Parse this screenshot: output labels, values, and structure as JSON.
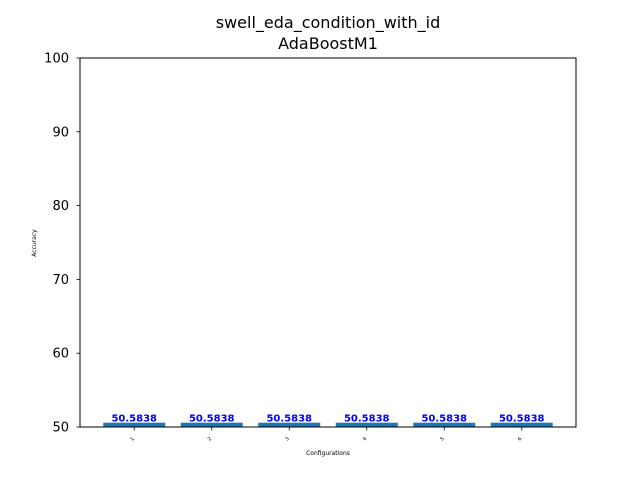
{
  "chart_data": {
    "type": "bar",
    "title": "swell_eda_condition_with_id",
    "subtitle": "AdaBoostM1",
    "xlabel": "Configurations",
    "ylabel": "Accuracy",
    "categories": [
      "1",
      "2",
      "3",
      "4",
      "5",
      "6"
    ],
    "values": [
      50.5838,
      50.5838,
      50.5838,
      50.5838,
      50.5838,
      50.5838
    ],
    "data_labels": [
      "50.5838",
      "50.5838",
      "50.5838",
      "50.5838",
      "50.5838",
      "50.5838"
    ],
    "ylim": [
      50,
      100
    ],
    "yticks": [
      "50",
      "60",
      "70",
      "80",
      "90",
      "100"
    ],
    "grid": false,
    "legend": "none",
    "bar_color": "#1f77b4",
    "label_color": "#0000ff"
  }
}
